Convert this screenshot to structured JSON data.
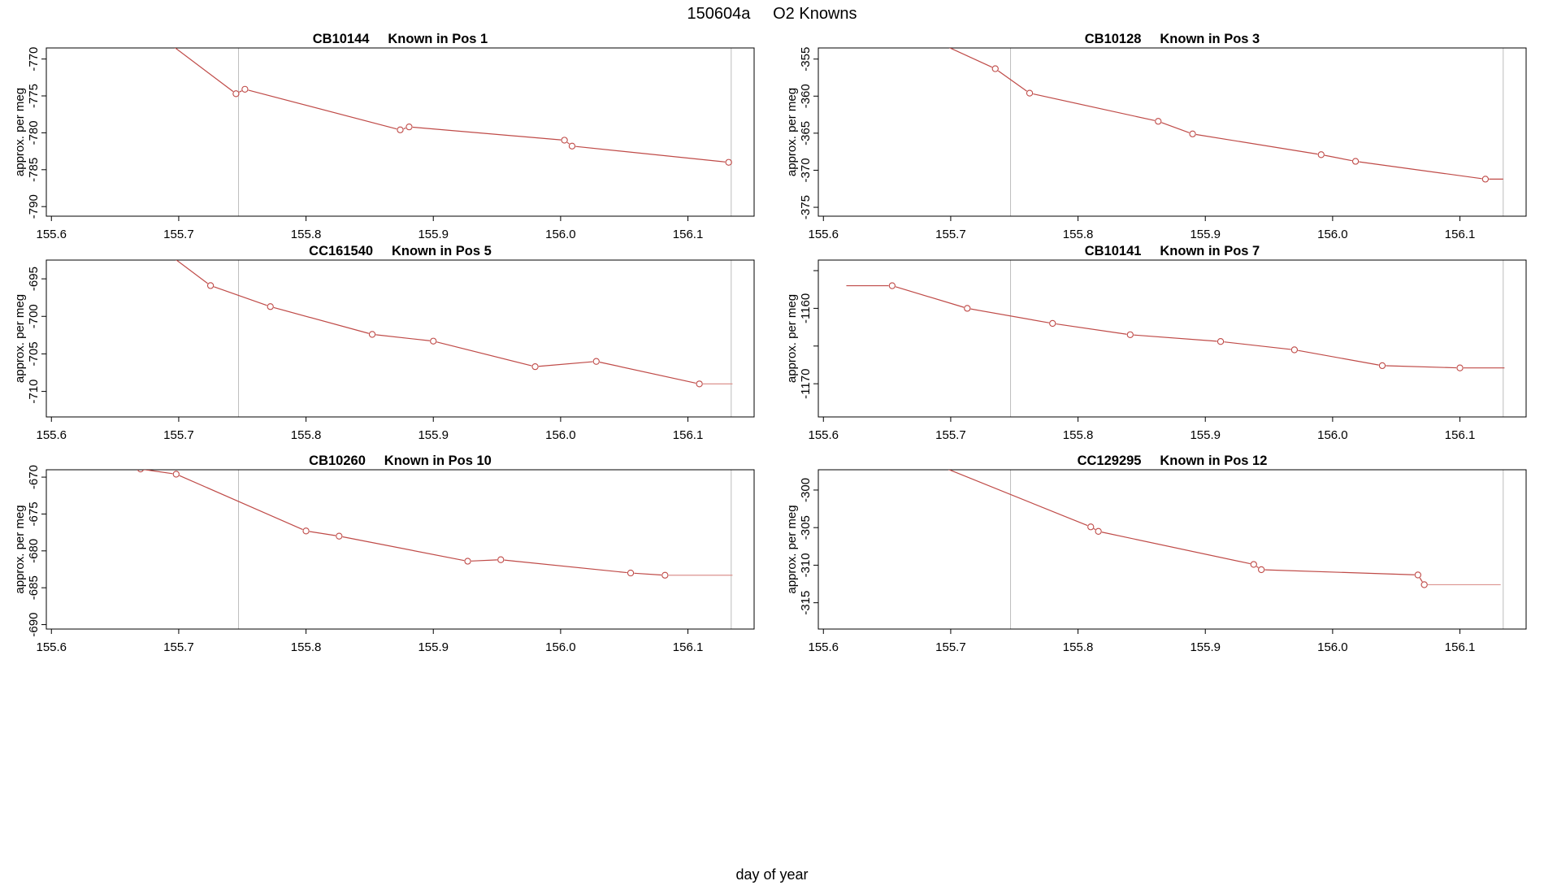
{
  "chart_data": {
    "type": "line",
    "title": "150604a     O2 Knowns",
    "xlabel": "day of year",
    "ylabel": "approx. per meg",
    "series_color": "#bf4a47",
    "tail_color": "#dc938f",
    "ref_line_color": "#bdbdbd",
    "axis_color": "#000000",
    "marker": "open-circle",
    "ref_lines_x": [
      155.747,
      156.134
    ],
    "xlim": [
      155.596,
      156.152
    ],
    "xticks": [
      155.6,
      155.7,
      155.8,
      155.9,
      156.0,
      156.1
    ],
    "xtick_labels": [
      "155.6",
      "155.7",
      "155.8",
      "155.9",
      "156.0",
      "156.1"
    ],
    "panels": [
      {
        "id": "pos1",
        "title": "CB10144     Known in Pos 1",
        "ylim": [
          -791.3,
          -768.5
        ],
        "yticks": [
          -770,
          -775,
          -780,
          -785,
          -790
        ],
        "ytick_labels": [
          "-770",
          "-775",
          "-780",
          "-785",
          "-790"
        ],
        "line_start": [
          155.655,
          -763.0
        ],
        "points": [
          [
            155.745,
            -774.7
          ],
          [
            155.752,
            -774.1
          ],
          [
            155.874,
            -779.6
          ],
          [
            155.881,
            -779.2
          ],
          [
            156.003,
            -781.0
          ],
          [
            156.009,
            -781.8
          ],
          [
            156.132,
            -784.0
          ]
        ],
        "tail_end_x": null,
        "light_tail": false
      },
      {
        "id": "pos3",
        "title": "CB10128     Known in Pos 3",
        "ylim": [
          -376.2,
          -353.5
        ],
        "yticks": [
          -355,
          -360,
          -365,
          -370,
          -375
        ],
        "ytick_labels": [
          "-355",
          "-360",
          "-365",
          "-370",
          "-375"
        ],
        "line_start": [
          155.655,
          -350.0
        ],
        "points": [
          [
            155.735,
            -356.3
          ],
          [
            155.762,
            -359.6
          ],
          [
            155.863,
            -363.4
          ],
          [
            155.89,
            -365.1
          ],
          [
            155.991,
            -367.9
          ],
          [
            156.018,
            -368.8
          ],
          [
            156.12,
            -371.2
          ]
        ],
        "tail_end_x": 156.134,
        "light_tail": false
      },
      {
        "id": "pos5",
        "title": "CC161540     Known in Pos 5",
        "ylim": [
          -713.4,
          -692.5
        ],
        "yticks": [
          -695,
          -700,
          -705,
          -710
        ],
        "ytick_labels": [
          "-695",
          "-700",
          "-705",
          "-710"
        ],
        "line_start": [
          155.655,
          -687.0
        ],
        "points": [
          [
            155.725,
            -695.9
          ],
          [
            155.772,
            -698.7
          ],
          [
            155.852,
            -702.4
          ],
          [
            155.9,
            -703.3
          ],
          [
            155.98,
            -706.7
          ],
          [
            156.028,
            -706.0
          ],
          [
            156.109,
            -709.0
          ]
        ],
        "tail_end_x": 156.135,
        "light_tail": true
      },
      {
        "id": "pos7",
        "title": "CB10141     Known in Pos 7",
        "ylim": [
          -1174.4,
          -1153.6
        ],
        "yticks": [
          -1155,
          -1160,
          -1165,
          -1170
        ],
        "ytick_labels": [
          "",
          "-1160",
          "",
          "-1170"
        ],
        "line_start": [
          155.618,
          -1157.0
        ],
        "points": [
          [
            155.654,
            -1157.0
          ],
          [
            155.713,
            -1160.0
          ],
          [
            155.78,
            -1162.0
          ],
          [
            155.841,
            -1163.5
          ],
          [
            155.912,
            -1164.4
          ],
          [
            155.97,
            -1165.5
          ],
          [
            156.039,
            -1167.6
          ],
          [
            156.1,
            -1167.9
          ]
        ],
        "tail_end_x": 156.135,
        "light_tail": false
      },
      {
        "id": "pos10",
        "title": "CB10260     Known in Pos 10",
        "ylim": [
          -690.6,
          -669.0
        ],
        "yticks": [
          -670,
          -675,
          -680,
          -685,
          -690
        ],
        "ytick_labels": [
          "-670",
          "-675",
          "-680",
          "-685",
          "-690"
        ],
        "line_start": null,
        "points": [
          [
            155.67,
            -668.9
          ],
          [
            155.698,
            -669.6
          ],
          [
            155.8,
            -677.3
          ],
          [
            155.826,
            -678.0
          ],
          [
            155.927,
            -681.4
          ],
          [
            155.953,
            -681.2
          ],
          [
            156.055,
            -683.0
          ],
          [
            156.082,
            -683.3
          ]
        ],
        "tail_end_x": 156.135,
        "light_tail": true
      },
      {
        "id": "pos12",
        "title": "CC129295     Known in Pos 12",
        "ylim": [
          -318.5,
          -297.3
        ],
        "yticks": [
          -300,
          -305,
          -310,
          -315
        ],
        "ytick_labels": [
          "-300",
          "-305",
          "-310",
          "-315"
        ],
        "line_start": [
          155.655,
          -294.3
        ],
        "points": [
          [
            155.81,
            -304.9
          ],
          [
            155.816,
            -305.5
          ],
          [
            155.938,
            -309.9
          ],
          [
            155.944,
            -310.6
          ],
          [
            156.067,
            -311.3
          ],
          [
            156.072,
            -312.6
          ]
        ],
        "tail_end_x": 156.132,
        "light_tail": true
      }
    ]
  }
}
